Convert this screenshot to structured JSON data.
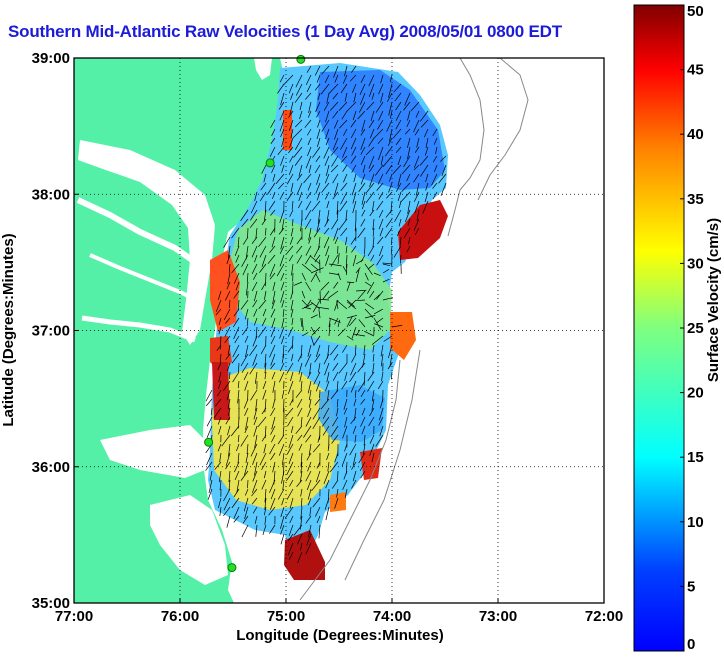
{
  "chart_data": {
    "type": "heatmap",
    "title": "Southern Mid-Atlantic Raw Velocities (1 Day Avg) 2008/05/01 0800 EDT",
    "xlabel": "Longitude (Degrees:Minutes)",
    "ylabel": "Latitude (Degrees:Minutes)",
    "colorbar_label": "Surface Velocity (cm/s)",
    "xlim": [
      -77,
      -72
    ],
    "ylim": [
      35,
      39
    ],
    "clim": [
      0,
      50
    ],
    "grid": true,
    "x_ticks": [
      -77,
      -76,
      -75,
      -74,
      -73,
      -72
    ],
    "x_tick_labels": [
      "77:00",
      "76:00",
      "75:00",
      "74:00",
      "73:00",
      "72:00"
    ],
    "y_ticks": [
      35,
      36,
      37,
      38,
      39
    ],
    "y_tick_labels": [
      "35:00",
      "36:00",
      "37:00",
      "38:00",
      "39:00"
    ],
    "colorbar_ticks": [
      0,
      5,
      10,
      15,
      20,
      25,
      30,
      35,
      40,
      45,
      50
    ],
    "colorbar_tick_labels": [
      "0",
      "5",
      "10",
      "15",
      "20",
      "25",
      "30",
      "35",
      "40",
      "45",
      "50"
    ],
    "colors": {
      "land": "#55f0a8",
      "title": "#1c1cd8",
      "station": "#22e022"
    },
    "stations": [
      {
        "lon": -74.86,
        "lat": 38.99
      },
      {
        "lon": -75.15,
        "lat": 38.23
      },
      {
        "lon": -75.73,
        "lat": 36.18
      },
      {
        "lon": -75.51,
        "lat": 35.26
      }
    ]
  }
}
